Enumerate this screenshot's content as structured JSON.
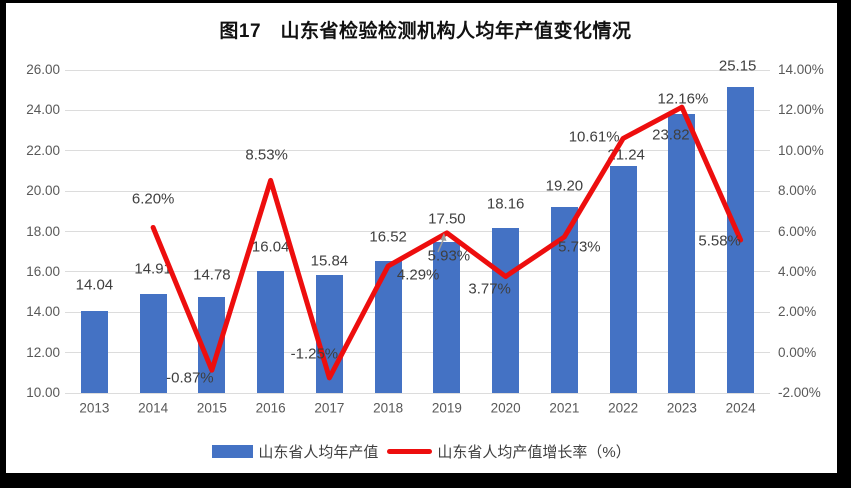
{
  "figure": {
    "title": "图17　山东省检验检测机构人均年产值变化情况"
  },
  "legend": {
    "bar_label": "山东省人均年产值",
    "line_label": "山东省人均产值增长率（%）"
  },
  "colors": {
    "bar": "#4472C4",
    "line": "#ED0E0E",
    "gridline": "#DCDCDC",
    "axis_text": "#595959",
    "data_label_text": "#3F3F3F",
    "leader_arrow": "#9a9a9a",
    "frame": "#000000",
    "background": "#FFFFFF"
  },
  "chart_data": {
    "type": "bar+line combo",
    "title": "图17　山东省检验检测机构人均年产值变化情况",
    "categories": [
      "2013",
      "2014",
      "2015",
      "2016",
      "2017",
      "2018",
      "2019",
      "2020",
      "2021",
      "2022",
      "2023",
      "2024"
    ],
    "series": [
      {
        "name": "山东省人均年产值",
        "type": "bar",
        "axis": "left",
        "values": [
          14.04,
          14.91,
          14.78,
          16.04,
          15.84,
          16.52,
          17.5,
          18.16,
          19.2,
          21.24,
          23.82,
          25.15
        ],
        "labels": [
          "14.04",
          "14.91",
          "14.78",
          "16.04",
          "15.84",
          "16.52",
          "17.50",
          "18.16",
          "19.20",
          "21.24",
          "23.82",
          "25.15"
        ]
      },
      {
        "name": "山东省人均产值增长率（%）",
        "type": "line",
        "axis": "right",
        "values": [
          null,
          6.2,
          -0.87,
          8.53,
          -1.25,
          4.29,
          5.93,
          3.77,
          5.73,
          10.61,
          12.16,
          5.58
        ],
        "labels": [
          null,
          "6.20%",
          "-0.87%",
          "8.53%",
          "-1.25%",
          "4.29%",
          "5.93%",
          "3.77%",
          "5.73%",
          "10.61%",
          "12.16%",
          "5.58%"
        ]
      }
    ],
    "left_axis": {
      "min": 10,
      "max": 26,
      "step": 2,
      "ticks": [
        "10.00",
        "12.00",
        "14.00",
        "16.00",
        "18.00",
        "20.00",
        "22.00",
        "24.00",
        "26.00"
      ]
    },
    "right_axis": {
      "min": -2,
      "max": 14,
      "step": 2,
      "ticks": [
        "-2.00%",
        "0.00%",
        "2.00%",
        "4.00%",
        "6.00%",
        "8.00%",
        "10.00%",
        "12.00%",
        "14.00%"
      ]
    },
    "grid": "horizontal",
    "legend_position": "bottom",
    "label_offsets": {
      "bar": [
        [
          0,
          -2
        ],
        [
          0,
          -1
        ],
        [
          0,
          2
        ],
        [
          0,
          0
        ],
        [
          0,
          10
        ],
        [
          0,
          0
        ],
        [
          0,
          1
        ],
        [
          0,
          0
        ],
        [
          0,
          3
        ],
        [
          3,
          13
        ],
        [
          -11,
          45
        ],
        [
          -3,
          3
        ]
      ],
      "line": [
        null,
        [
          0,
          -28
        ],
        [
          -22,
          8
        ],
        [
          -4,
          -25
        ],
        [
          -15,
          -24
        ],
        [
          30,
          9
        ],
        [
          2,
          23
        ],
        [
          -16,
          12
        ],
        [
          15,
          10
        ],
        [
          -29,
          -1
        ],
        [
          1,
          -8
        ],
        [
          -21,
          1
        ]
      ]
    }
  }
}
